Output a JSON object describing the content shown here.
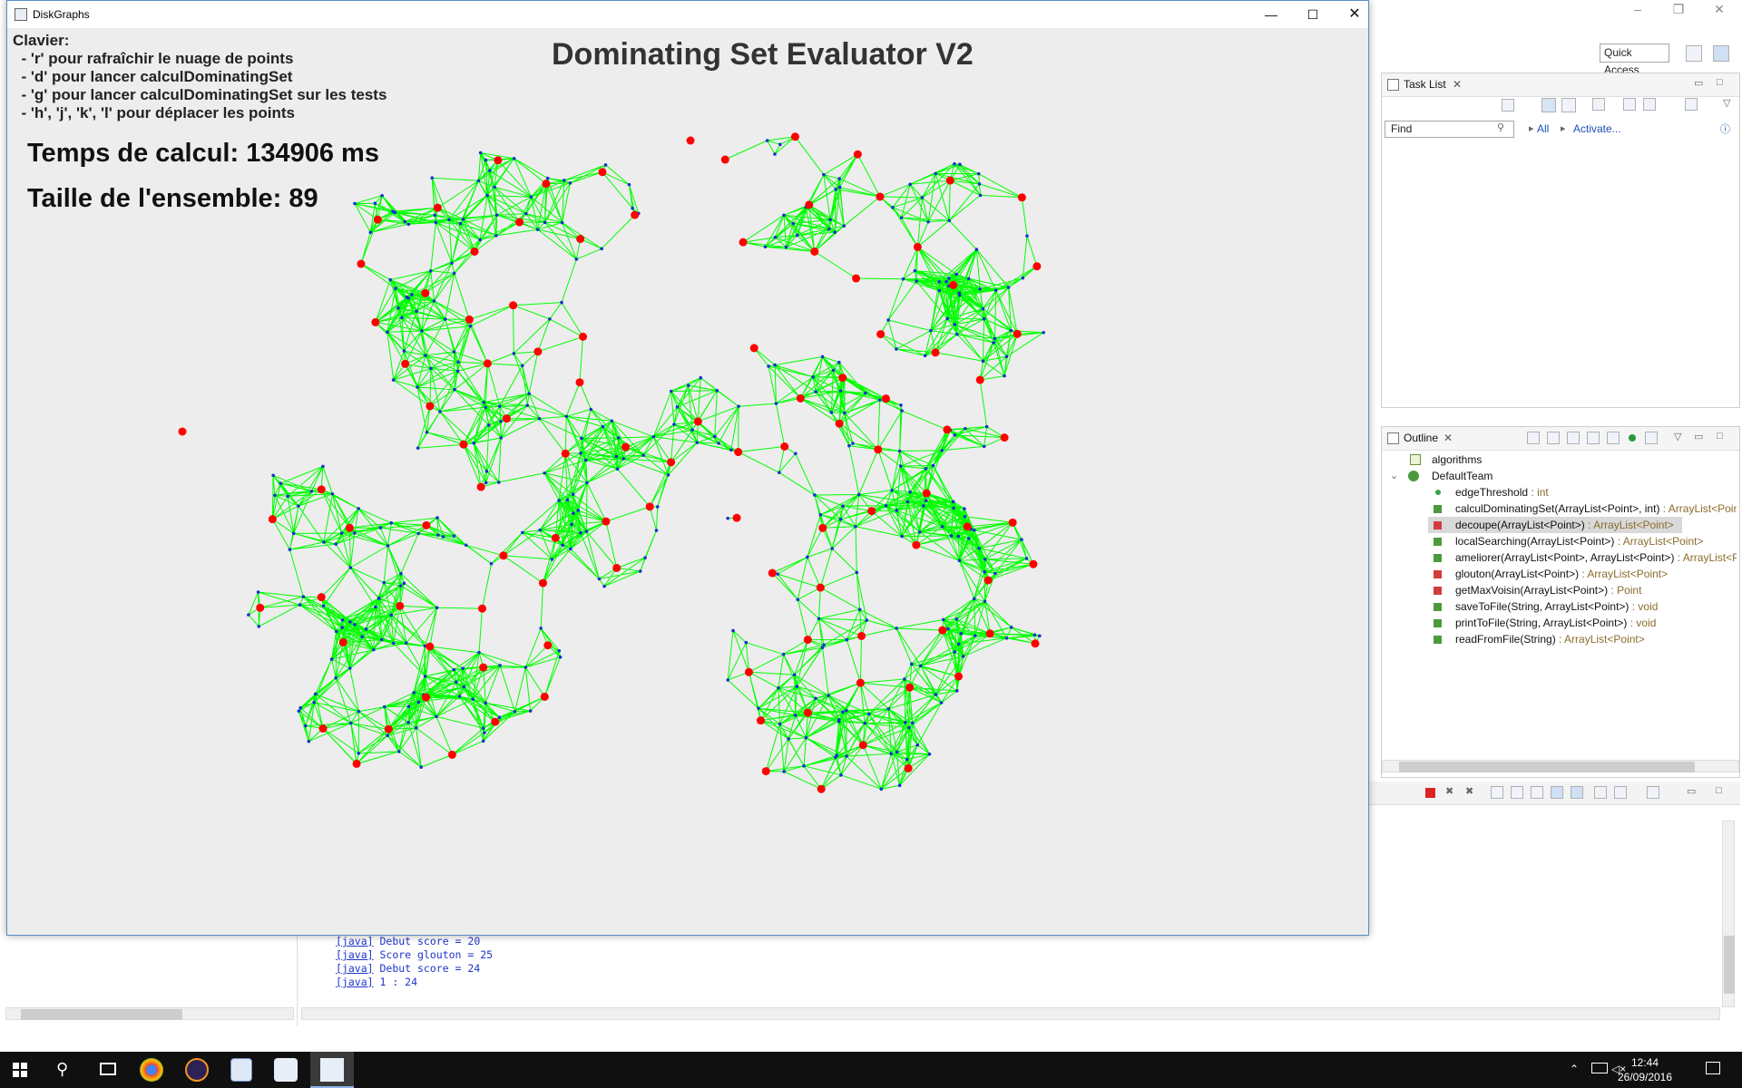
{
  "app": {
    "window_title": "DiskGraphs",
    "heading": "Dominating Set Evaluator V2",
    "hints": [
      "Clavier:",
      "  - 'r' pour rafraîchir le nuage de points",
      "  - 'd' pour lancer calculDominatingSet",
      "  - 'g' pour lancer calculDominatingSet sur les tests",
      "  - 'h', 'j', 'k', 'l' pour déplacer les points"
    ],
    "compute_time": "Temps de calcul: 134906 ms",
    "set_size": "Taille de l'ensemble: 89",
    "colors": {
      "edge": "#00ff00",
      "dominator": "#ff0000",
      "node": "#1530d0",
      "canvas": "#ededed"
    }
  },
  "eclipse": {
    "quick_access": "Quick Access",
    "task_list": {
      "tab_label": "Task List",
      "find_placeholder": "Find",
      "all_label": "All",
      "activate_label": "Activate..."
    },
    "outline": {
      "tab_label": "Outline",
      "package": "algorithms",
      "class": "DefaultTeam",
      "members": [
        {
          "name": "edgeThreshold",
          "type": " : int",
          "icon": "static-field-icon"
        },
        {
          "name": "calculDominatingSet(ArrayList<Point>, int)",
          "type": " : ArrayList<Poin",
          "icon": "public-method-icon"
        },
        {
          "name": "decoupe(ArrayList<Point>)",
          "type": " : ArrayList<Point>",
          "icon": "private-method-icon",
          "selected": true
        },
        {
          "name": "localSearching(ArrayList<Point>)",
          "type": " : ArrayList<Point>",
          "icon": "public-method-icon"
        },
        {
          "name": "ameliorer(ArrayList<Point>, ArrayList<Point>)",
          "type": " : ArrayList<P",
          "icon": "public-method-icon"
        },
        {
          "name": "glouton(ArrayList<Point>)",
          "type": " : ArrayList<Point>",
          "icon": "private-method-icon"
        },
        {
          "name": "getMaxVoisin(ArrayList<Point>)",
          "type": " : Point",
          "icon": "private-method-icon"
        },
        {
          "name": "saveToFile(String, ArrayList<Point>)",
          "type": " : void",
          "icon": "public-method-icon"
        },
        {
          "name": "printToFile(String, ArrayList<Point>)",
          "type": " : void",
          "icon": "public-method-icon"
        },
        {
          "name": "readFromFile(String)",
          "type": " : ArrayList<Point>",
          "icon": "public-method-icon"
        }
      ]
    },
    "console": [
      {
        "tag": "[java]",
        "text": " Debut score = 20"
      },
      {
        "tag": "[java]",
        "text": " Score glouton = 25"
      },
      {
        "tag": "[java]",
        "text": " Debut score = 24"
      },
      {
        "tag": "[java]",
        "text": " 1 : 24"
      }
    ]
  },
  "taskbar": {
    "time": "12:44",
    "date": "26/09/2016",
    "apps": [
      "windows-start-icon",
      "search-icon",
      "task-view-icon",
      "chrome-icon",
      "eclipse-icon",
      "notepad-icon",
      "java-icon",
      "java-active-icon"
    ]
  }
}
